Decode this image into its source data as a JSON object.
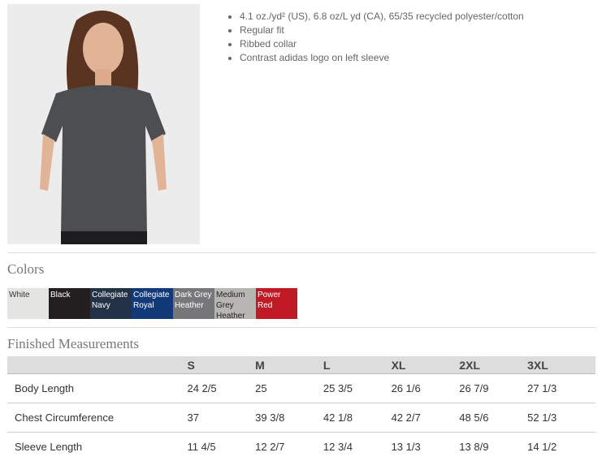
{
  "product": {
    "features": [
      "4.1 oz./yd² (US), 6.8 oz/L yd (CA), 65/35 recycled polyester/cotton",
      "Regular fit",
      "Ribbed collar",
      "Contrast adidas logo on left sleeve"
    ]
  },
  "colors": {
    "title": "Colors",
    "swatches": [
      {
        "name": "White",
        "bg": "#e4e4e2",
        "fg": "#333333"
      },
      {
        "name": "Black",
        "bg": "#231f20",
        "fg": "#ffffff"
      },
      {
        "name": "Collegiate Navy",
        "bg": "#243248",
        "fg": "#ffffff"
      },
      {
        "name": "Collegiate Royal",
        "bg": "#123a78",
        "fg": "#ffffff"
      },
      {
        "name": "Dark Grey Heather",
        "bg": "#77777a",
        "fg": "#ffffff"
      },
      {
        "name": "Medium Grey Heather",
        "bg": "#b8b6b2",
        "fg": "#222222"
      },
      {
        "name": "Power Red",
        "bg": "#c01a24",
        "fg": "#ffffff"
      }
    ]
  },
  "measurements": {
    "title": "Finished Measurements",
    "sizes": [
      "S",
      "M",
      "L",
      "XL",
      "2XL",
      "3XL"
    ],
    "rows": [
      {
        "label": "Body Length",
        "values": [
          "24 2/5",
          "25",
          "25 3/5",
          "26 1/6",
          "26 7/9",
          "27 1/3"
        ]
      },
      {
        "label": "Chest Circumference",
        "values": [
          "37",
          "39 3/8",
          "42 1/8",
          "42 2/7",
          "48 5/6",
          "52 1/3"
        ]
      },
      {
        "label": "Sleeve Length",
        "values": [
          "11 4/5",
          "12 2/7",
          "12 3/4",
          "13 1/3",
          "13 8/9",
          "14 1/2"
        ]
      }
    ]
  }
}
